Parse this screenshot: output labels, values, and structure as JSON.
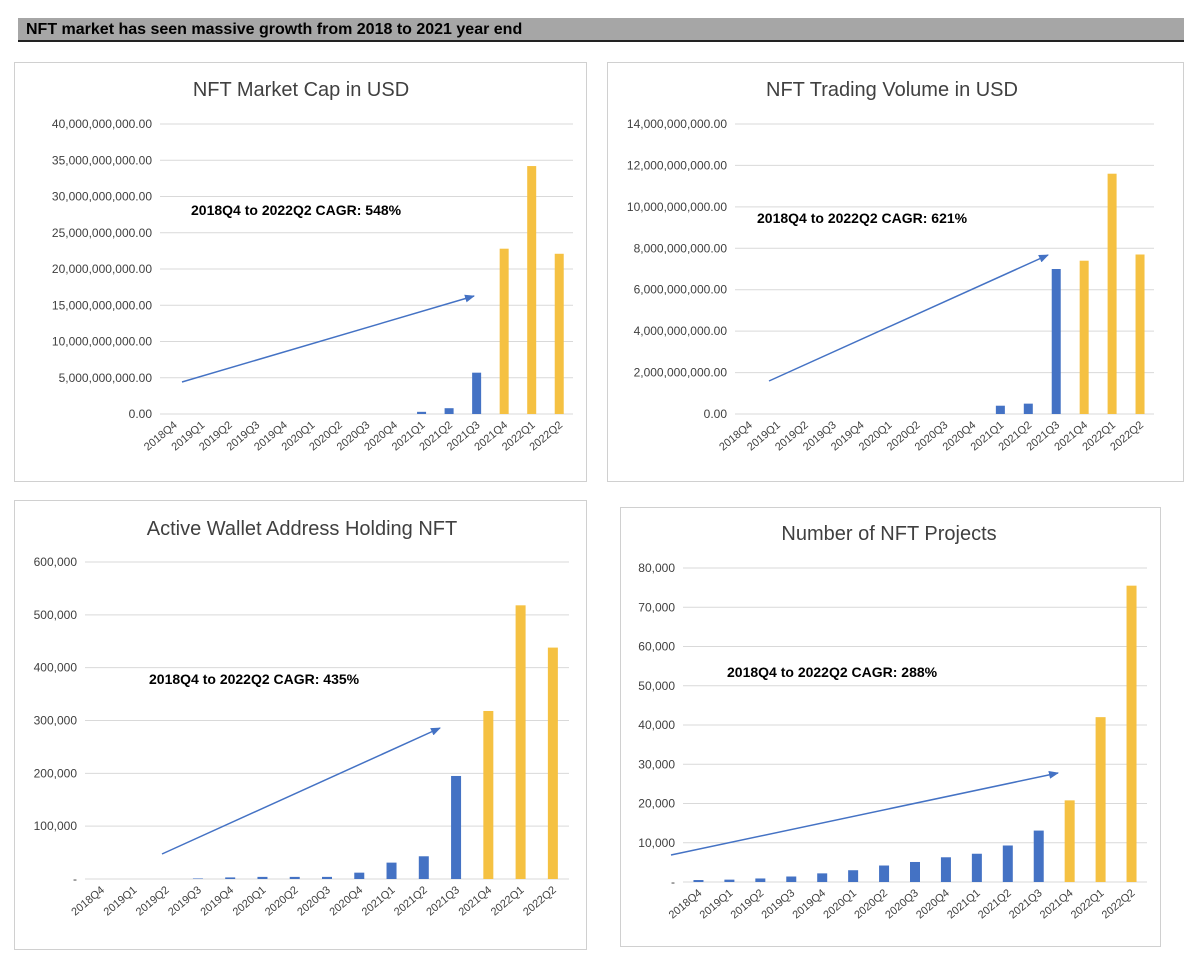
{
  "header": {
    "title": "NFT market has seen massive growth from 2018 to 2021 year end"
  },
  "colors": {
    "historical": "#4472c4",
    "recent": "#f5c142",
    "arrow": "#4472c4"
  },
  "chart_data": [
    {
      "type": "bar",
      "title": "NFT Market Cap in USD",
      "annotation": "2018Q4 to 2022Q2 CAGR: 548%",
      "categories": [
        "2018Q4",
        "2019Q1",
        "2019Q2",
        "2019Q3",
        "2019Q4",
        "2020Q1",
        "2020Q2",
        "2020Q3",
        "2020Q4",
        "2021Q1",
        "2021Q2",
        "2021Q3",
        "2021Q4",
        "2022Q1",
        "2022Q2"
      ],
      "values": [
        0,
        0,
        0,
        0,
        0,
        0,
        0,
        0,
        0,
        300000000,
        800000000,
        5700000000,
        22800000000,
        34200000000,
        22100000000
      ],
      "ylim": [
        0,
        40000000000
      ],
      "yticks": [
        "0.00",
        "5,000,000,000.00",
        "10,000,000,000.00",
        "15,000,000,000.00",
        "20,000,000,000.00",
        "25,000,000,000.00",
        "30,000,000,000.00",
        "35,000,000,000.00",
        "40,000,000,000.00"
      ],
      "highlight_from": "2021Q4"
    },
    {
      "type": "bar",
      "title": "NFT Trading Volume in USD",
      "annotation": "2018Q4 to 2022Q2 CAGR: 621%",
      "categories": [
        "2018Q4",
        "2019Q1",
        "2019Q2",
        "2019Q3",
        "2019Q4",
        "2020Q1",
        "2020Q2",
        "2020Q3",
        "2020Q4",
        "2021Q1",
        "2021Q2",
        "2021Q3",
        "2021Q4",
        "2022Q1",
        "2022Q2"
      ],
      "values": [
        0,
        0,
        0,
        0,
        0,
        0,
        0,
        0,
        0,
        400000000,
        500000000,
        7000000000,
        7400000000,
        11600000000,
        7700000000
      ],
      "ylim": [
        0,
        14000000000
      ],
      "yticks": [
        "0.00",
        "2,000,000,000.00",
        "4,000,000,000.00",
        "6,000,000,000.00",
        "8,000,000,000.00",
        "10,000,000,000.00",
        "12,000,000,000.00",
        "14,000,000,000.00"
      ],
      "highlight_from": "2021Q4"
    },
    {
      "type": "bar",
      "title": "Active Wallet Address Holding NFT",
      "annotation": "2018Q4 to 2022Q2 CAGR: 435%",
      "categories": [
        "2018Q4",
        "2019Q1",
        "2019Q2",
        "2019Q3",
        "2019Q4",
        "2020Q1",
        "2020Q2",
        "2020Q3",
        "2020Q4",
        "2021Q1",
        "2021Q2",
        "2021Q3",
        "2021Q4",
        "2022Q1",
        "2022Q2"
      ],
      "values": [
        0,
        0,
        0,
        1000,
        3000,
        4000,
        4000,
        4000,
        12000,
        31000,
        43000,
        195000,
        318000,
        518000,
        438000
      ],
      "ylim": [
        0,
        600000
      ],
      "yticks": [
        "-",
        "100,000",
        "200,000",
        "300,000",
        "400,000",
        "500,000",
        "600,000"
      ],
      "highlight_from": "2021Q4"
    },
    {
      "type": "bar",
      "title": "Number of NFT Projects",
      "annotation": "2018Q4 to 2022Q2 CAGR: 288%",
      "categories": [
        "2018Q4",
        "2019Q1",
        "2019Q2",
        "2019Q3",
        "2019Q4",
        "2020Q1",
        "2020Q2",
        "2020Q3",
        "2020Q4",
        "2021Q1",
        "2021Q2",
        "2021Q3",
        "2021Q4",
        "2022Q1",
        "2022Q2"
      ],
      "values": [
        500,
        600,
        900,
        1400,
        2200,
        3000,
        4200,
        5100,
        6300,
        7200,
        9300,
        13100,
        20800,
        42000,
        75500
      ],
      "ylim": [
        0,
        80000
      ],
      "yticks": [
        "-",
        "10,000",
        "20,000",
        "30,000",
        "40,000",
        "50,000",
        "60,000",
        "70,000",
        "80,000"
      ],
      "highlight_from": "2021Q4"
    }
  ]
}
